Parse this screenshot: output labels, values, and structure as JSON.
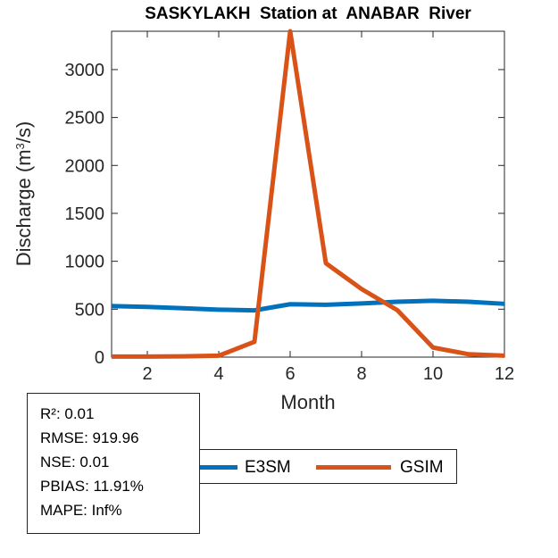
{
  "chart_data": {
    "type": "line",
    "title": "SASKYLAKH  Station at  ANABAR  River",
    "xlabel": "Month",
    "ylabel": "Discharge (m³/s)",
    "x": [
      1,
      2,
      3,
      4,
      5,
      6,
      7,
      8,
      9,
      10,
      11,
      12
    ],
    "xlim": [
      1,
      12
    ],
    "ylim": [
      0,
      3400
    ],
    "x_ticks": [
      2,
      4,
      6,
      8,
      10,
      12
    ],
    "y_ticks": [
      0,
      500,
      1000,
      1500,
      2000,
      2500,
      3000
    ],
    "grid": false,
    "legend_position": "below-axes",
    "axis_color": "#262626",
    "series": [
      {
        "name": "E3SM",
        "color": "#0072BD",
        "values": [
          533,
          524,
          510,
          495,
          488,
          552,
          546,
          560,
          578,
          588,
          577,
          556
        ]
      },
      {
        "name": "GSIM",
        "color": "#D95319",
        "values": [
          6,
          6,
          8,
          15,
          160,
          3400,
          980,
          710,
          490,
          100,
          30,
          15
        ]
      }
    ]
  },
  "ylabel_parts": {
    "pre": "Discharge (m",
    "sup": "3",
    "post": "/s)"
  },
  "stats_box": {
    "lines": [
      "R²: 0.01",
      "RMSE: 919.96",
      "NSE: 0.01",
      "PBIAS: 11.91%",
      "MAPE: Inf%"
    ]
  }
}
